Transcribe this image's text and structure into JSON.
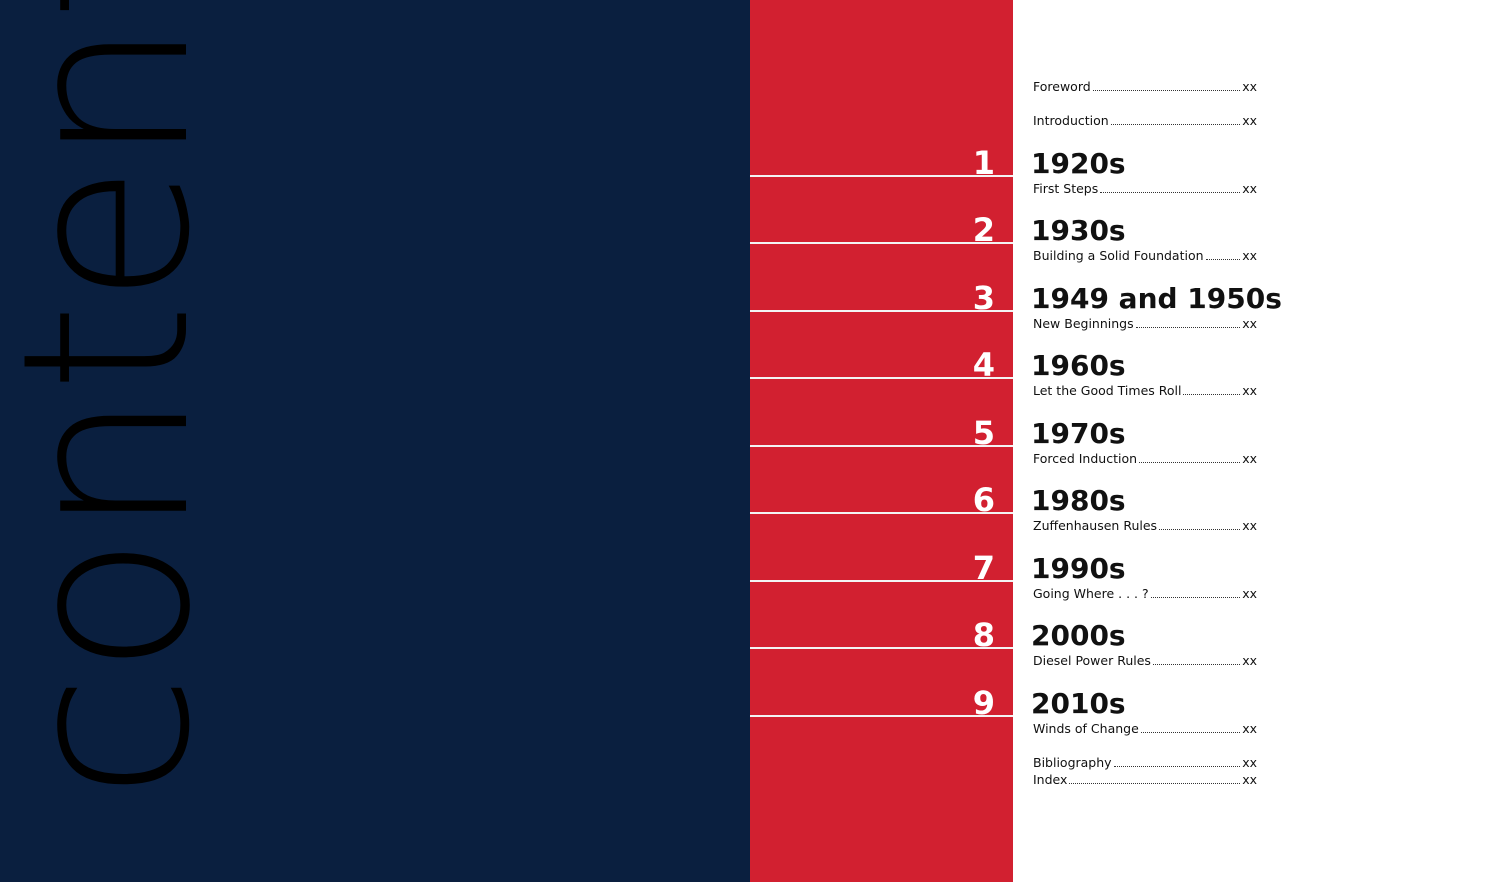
{
  "page_title": "contents",
  "chapter_numbers": [
    "1",
    "2",
    "3",
    "4",
    "5",
    "6",
    "7",
    "8",
    "9"
  ],
  "toc": {
    "page_placeholder": "xx",
    "front": [
      {
        "label": "Foreword",
        "page": "xx"
      },
      {
        "label": "Introduction",
        "page": "xx"
      }
    ],
    "chapters": [
      {
        "number": "1",
        "decade": "1920s",
        "subtitle": "First Steps",
        "page": "xx"
      },
      {
        "number": "2",
        "decade": "1930s",
        "subtitle": "Building a Solid Foundation",
        "page": "xx"
      },
      {
        "number": "3",
        "decade": "1949 and 1950s",
        "subtitle": "New Beginnings",
        "page": "xx"
      },
      {
        "number": "4",
        "decade": "1960s",
        "subtitle": "Let the Good Times Roll",
        "page": "xx"
      },
      {
        "number": "5",
        "decade": "1970s",
        "subtitle": "Forced Induction",
        "page": "xx"
      },
      {
        "number": "6",
        "decade": "1980s",
        "subtitle": "Zuffenhausen Rules",
        "page": "xx"
      },
      {
        "number": "7",
        "decade": "1990s",
        "subtitle": "Going Where . . . ?",
        "page": "xx"
      },
      {
        "number": "8",
        "decade": "2000s",
        "subtitle": "Diesel Power Rules",
        "page": "xx"
      },
      {
        "number": "9",
        "decade": "2010s",
        "subtitle": "Winds of Change",
        "page": "xx"
      }
    ],
    "back": [
      {
        "label": "Bibliography",
        "page": "xx"
      },
      {
        "label": "Index",
        "page": "xx"
      }
    ]
  },
  "colors": {
    "navy": "#0a1f3f",
    "red": "#d22030",
    "white": "#ffffff",
    "text": "#111111"
  }
}
